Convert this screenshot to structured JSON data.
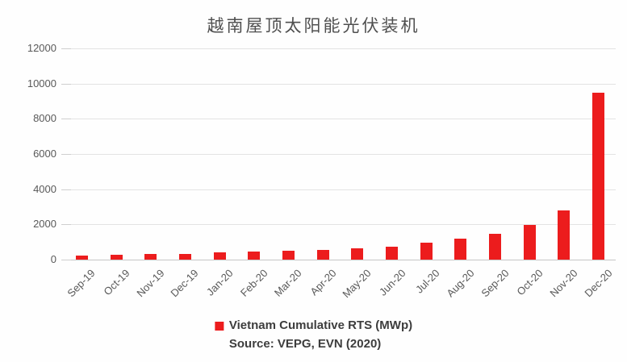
{
  "chart_data": {
    "type": "bar",
    "title": "越南屋顶太阳能光伏装机",
    "categories": [
      "Sep-19",
      "Oct-19",
      "Nov-19",
      "Dec-19",
      "Jan-20",
      "Feb-20",
      "Mar-20",
      "Apr-20",
      "May-20",
      "Jun-20",
      "Jul-20",
      "Aug-20",
      "Sep-20",
      "Oct-20",
      "Nov-20",
      "Dec-20"
    ],
    "values": [
      240,
      280,
      310,
      340,
      390,
      450,
      520,
      545,
      640,
      730,
      950,
      1180,
      1450,
      1950,
      2800,
      9500
    ],
    "series_name": "Vietnam Cumulative RTS (MWp)",
    "legend": [
      "Vietnam Cumulative RTS (MWp)"
    ],
    "source_note": "Source: VEPG, EVN (2020)",
    "xlabel": "",
    "ylabel": "",
    "ylim": [
      0,
      12000
    ],
    "yticks": [
      0,
      2000,
      4000,
      6000,
      8000,
      10000,
      12000
    ],
    "grid": true,
    "legend_position": "bottom",
    "bar_color": "#ec1c1d"
  }
}
